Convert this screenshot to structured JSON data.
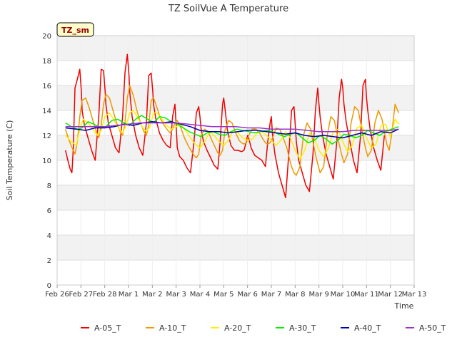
{
  "chart_data": {
    "type": "line",
    "title": "TZ SoilVue A Temperature",
    "xlabel": "Time",
    "ylabel": "Soil Temperature (C)",
    "ylim": [
      0,
      20
    ],
    "yticks": [
      0,
      2,
      4,
      6,
      8,
      10,
      12,
      14,
      16,
      18,
      20
    ],
    "xlim": [
      0,
      15
    ],
    "xticks": [
      0,
      1,
      2,
      3,
      4,
      5,
      6,
      7,
      8,
      9,
      10,
      11,
      12,
      13,
      14,
      15
    ],
    "xtick_labels": [
      "Feb 26",
      "Feb 27",
      "Feb 28",
      "Mar 1",
      "Mar 2",
      "Mar 3",
      "Mar 4",
      "Mar 5",
      "Mar 6",
      "Mar 7",
      "Mar 8",
      "Mar 9",
      "Mar 10",
      "Mar 11",
      "Mar 12",
      "Mar 13"
    ],
    "grid": true,
    "badge": "TZ_sm",
    "legend_position": "bottom",
    "series": [
      {
        "name": "A-05_T",
        "color": "#ee0000",
        "x": [
          0.35,
          0.45,
          0.55,
          0.62,
          0.68,
          0.75,
          0.85,
          0.95,
          1.02,
          1.05,
          1.15,
          1.3,
          1.45,
          1.6,
          1.75,
          1.85,
          1.95,
          2.02,
          2.05,
          2.15,
          2.3,
          2.45,
          2.6,
          2.75,
          2.85,
          2.95,
          3.02,
          3.05,
          3.15,
          3.3,
          3.45,
          3.6,
          3.75,
          3.85,
          3.95,
          4.02,
          4.05,
          4.15,
          4.3,
          4.45,
          4.6,
          4.75,
          4.85,
          4.95,
          5.0,
          5.05,
          5.15,
          5.3,
          5.45,
          5.6,
          5.75,
          5.85,
          5.95,
          6.0,
          6.05,
          6.15,
          6.3,
          6.45,
          6.6,
          6.75,
          6.85,
          6.95,
          7.0,
          7.05,
          7.15,
          7.3,
          7.45,
          7.6,
          7.75,
          7.85,
          7.95,
          8.0,
          8.05,
          8.15,
          8.3,
          8.45,
          8.6,
          8.75,
          8.85,
          8.95,
          9.0,
          9.05,
          9.15,
          9.3,
          9.45,
          9.6,
          9.75,
          9.85,
          9.95,
          10.0,
          10.05,
          10.15,
          10.3,
          10.45,
          10.6,
          10.75,
          10.85,
          10.95,
          11.0,
          11.05,
          11.15,
          11.3,
          11.45,
          11.6,
          11.75,
          11.85,
          11.95,
          12.0,
          12.05,
          12.15,
          12.3,
          12.45,
          12.6,
          12.75,
          12.85,
          12.95,
          13.0,
          13.05,
          13.15,
          13.3,
          13.45,
          13.6,
          13.75
        ],
        "values": [
          10.8,
          10.0,
          9.3,
          9.0,
          11.0,
          15.8,
          16.5,
          17.3,
          15.5,
          14.0,
          12.8,
          11.8,
          10.8,
          10.0,
          13.5,
          17.3,
          17.2,
          15.5,
          14.5,
          13.0,
          12.0,
          11.0,
          10.6,
          13.5,
          17.0,
          18.5,
          16.8,
          15.5,
          13.5,
          12.0,
          11.0,
          10.4,
          13.0,
          16.8,
          17.0,
          15.5,
          14.5,
          13.3,
          12.2,
          11.6,
          11.2,
          11.0,
          13.5,
          14.5,
          12.8,
          11.0,
          10.3,
          10.0,
          9.4,
          9.0,
          11.5,
          13.8,
          14.3,
          13.5,
          12.5,
          11.5,
          10.8,
          10.2,
          9.6,
          9.3,
          11.5,
          14.5,
          15.0,
          14.2,
          12.5,
          11.2,
          10.8,
          10.8,
          10.7,
          10.8,
          11.5,
          12.0,
          11.8,
          11.0,
          10.4,
          10.2,
          10.0,
          9.5,
          11.5,
          13.0,
          13.5,
          12.0,
          10.5,
          9.0,
          8.0,
          7.0,
          11.0,
          14.0,
          14.3,
          13.0,
          11.5,
          10.0,
          9.0,
          8.0,
          7.5,
          10.5,
          14.0,
          15.8,
          14.5,
          13.5,
          12.0,
          10.5,
          9.5,
          8.5,
          11.5,
          15.0,
          16.5,
          15.8,
          14.5,
          13.0,
          11.5,
          10.0,
          9.0,
          12.0,
          16.0,
          16.5,
          15.0,
          14.0,
          12.5,
          11.0,
          10.0,
          9.2,
          12.0
        ]
      },
      {
        "name": "A-10_T",
        "color": "#ee9900",
        "x": [
          0.35,
          0.5,
          0.65,
          0.75,
          0.85,
          0.95,
          1.05,
          1.2,
          1.35,
          1.5,
          1.65,
          1.75,
          1.85,
          1.95,
          2.05,
          2.2,
          2.35,
          2.5,
          2.65,
          2.75,
          2.85,
          2.95,
          3.05,
          3.2,
          3.35,
          3.5,
          3.65,
          3.75,
          3.85,
          3.95,
          4.05,
          4.2,
          4.35,
          4.5,
          4.65,
          4.75,
          4.85,
          4.95,
          5.05,
          5.2,
          5.35,
          5.5,
          5.65,
          5.75,
          5.85,
          5.95,
          6.05,
          6.2,
          6.35,
          6.5,
          6.65,
          6.75,
          6.85,
          6.95,
          7.05,
          7.2,
          7.35,
          7.5,
          7.65,
          7.75,
          7.85,
          7.95,
          8.05,
          8.2,
          8.35,
          8.5,
          8.65,
          8.75,
          8.85,
          8.95,
          9.05,
          9.2,
          9.35,
          9.5,
          9.65,
          9.75,
          9.85,
          9.95,
          10.05,
          10.2,
          10.35,
          10.5,
          10.65,
          10.75,
          10.85,
          10.95,
          11.05,
          11.2,
          11.35,
          11.5,
          11.65,
          11.75,
          11.85,
          11.95,
          12.05,
          12.2,
          12.35,
          12.5,
          12.65,
          12.75,
          12.85,
          12.95,
          13.05,
          13.2,
          13.35,
          13.5,
          13.65,
          13.75,
          13.85,
          13.95,
          14.05,
          14.2,
          14.35
        ],
        "values": [
          12.5,
          11.6,
          10.9,
          10.5,
          11.5,
          13.5,
          14.8,
          15.0,
          14.2,
          13.2,
          12.3,
          11.8,
          12.8,
          14.5,
          15.3,
          15.0,
          14.0,
          13.0,
          12.3,
          12.0,
          13.0,
          15.0,
          16.0,
          15.2,
          14.0,
          13.0,
          12.3,
          12.0,
          12.8,
          14.8,
          15.0,
          14.2,
          13.3,
          12.8,
          12.4,
          12.2,
          12.5,
          13.0,
          13.2,
          12.6,
          11.8,
          11.2,
          10.7,
          10.4,
          10.2,
          10.5,
          12.0,
          12.5,
          12.3,
          11.6,
          11.0,
          10.6,
          10.4,
          10.8,
          12.4,
          13.2,
          13.0,
          12.2,
          11.6,
          11.4,
          11.3,
          11.4,
          12.0,
          12.5,
          12.5,
          12.2,
          11.7,
          11.4,
          11.3,
          11.4,
          11.8,
          12.6,
          12.5,
          11.8,
          11.0,
          10.2,
          9.5,
          9.0,
          8.8,
          9.5,
          12.0,
          13.0,
          12.5,
          11.5,
          10.5,
          9.7,
          9.0,
          9.5,
          12.0,
          13.5,
          13.2,
          12.2,
          11.3,
          10.5,
          9.8,
          10.5,
          13.0,
          14.3,
          14.0,
          13.0,
          12.0,
          11.0,
          10.3,
          10.8,
          13.0,
          14.0,
          13.3,
          12.3,
          11.3,
          10.8,
          12.0,
          14.5,
          13.8
        ]
      },
      {
        "name": "A-20_T",
        "color": "#ffee00",
        "x": [
          0.35,
          0.6,
          0.8,
          0.95,
          1.1,
          1.3,
          1.5,
          1.7,
          1.85,
          2.0,
          2.2,
          2.4,
          2.6,
          2.75,
          2.9,
          3.05,
          3.2,
          3.4,
          3.6,
          3.75,
          3.9,
          4.05,
          4.2,
          4.4,
          4.6,
          4.8,
          5.0,
          5.2,
          5.4,
          5.6,
          5.8,
          6.0,
          6.2,
          6.4,
          6.6,
          6.8,
          7.0,
          7.2,
          7.4,
          7.6,
          7.8,
          8.0,
          8.2,
          8.4,
          8.6,
          8.8,
          9.0,
          9.2,
          9.4,
          9.6,
          9.8,
          10.0,
          10.2,
          10.4,
          10.6,
          10.8,
          11.0,
          11.2,
          11.4,
          11.6,
          11.8,
          12.0,
          12.2,
          12.4,
          12.6,
          12.8,
          13.0,
          13.2,
          13.4,
          13.6,
          13.8,
          14.0,
          14.2,
          14.35
        ],
        "values": [
          12.0,
          11.5,
          11.2,
          12.5,
          13.3,
          13.0,
          12.5,
          12.0,
          12.4,
          13.5,
          13.8,
          13.2,
          12.5,
          12.2,
          12.8,
          13.8,
          14.0,
          13.4,
          12.6,
          12.3,
          12.7,
          13.8,
          13.8,
          13.3,
          12.8,
          12.5,
          12.7,
          12.9,
          12.4,
          11.8,
          11.3,
          11.0,
          11.5,
          12.3,
          12.0,
          11.5,
          11.2,
          11.6,
          12.4,
          12.2,
          11.8,
          11.6,
          11.7,
          12.2,
          12.3,
          12.0,
          11.6,
          11.2,
          11.6,
          12.3,
          11.8,
          10.8,
          10.1,
          10.8,
          12.2,
          11.8,
          10.8,
          10.3,
          11.0,
          12.3,
          12.5,
          11.5,
          10.7,
          11.2,
          12.6,
          12.8,
          11.8,
          11.0,
          11.3,
          12.8,
          12.9,
          11.9,
          13.3,
          12.9
        ]
      },
      {
        "name": "A-30_T",
        "color": "#00ee00",
        "x": [
          0.35,
          0.6,
          0.85,
          1.05,
          1.3,
          1.55,
          1.8,
          2.05,
          2.3,
          2.55,
          2.8,
          3.05,
          3.3,
          3.55,
          3.8,
          4.05,
          4.3,
          4.55,
          4.8,
          5.05,
          5.3,
          5.55,
          5.8,
          6.05,
          6.3,
          6.55,
          6.8,
          7.05,
          7.3,
          7.55,
          7.8,
          8.05,
          8.3,
          8.55,
          8.8,
          9.05,
          9.3,
          9.55,
          9.8,
          10.05,
          10.3,
          10.55,
          10.8,
          11.05,
          11.3,
          11.55,
          11.8,
          12.05,
          12.3,
          12.55,
          12.8,
          13.05,
          13.3,
          13.55,
          13.8,
          14.05,
          14.35
        ],
        "values": [
          13.0,
          12.7,
          12.5,
          12.6,
          13.1,
          12.9,
          12.6,
          12.7,
          13.2,
          13.3,
          13.0,
          12.8,
          13.3,
          13.6,
          13.3,
          13.0,
          13.5,
          13.4,
          13.1,
          12.9,
          12.6,
          12.3,
          12.1,
          11.9,
          12.2,
          12.3,
          12.1,
          12.0,
          12.3,
          12.5,
          12.4,
          12.3,
          12.2,
          12.3,
          12.4,
          12.3,
          12.1,
          11.9,
          12.1,
          12.2,
          11.8,
          11.4,
          11.6,
          12.0,
          11.7,
          11.3,
          11.6,
          12.1,
          12.0,
          11.8,
          12.0,
          12.4,
          12.2,
          12.0,
          12.3,
          12.5,
          12.7
        ]
      },
      {
        "name": "A-40_T",
        "color": "#0000aa",
        "x": [
          0.35,
          0.8,
          1.2,
          1.6,
          2.0,
          2.4,
          2.8,
          3.2,
          3.6,
          4.0,
          4.4,
          4.8,
          5.2,
          5.6,
          6.0,
          6.4,
          6.8,
          7.2,
          7.6,
          8.0,
          8.4,
          8.8,
          9.2,
          9.6,
          10.0,
          10.4,
          10.8,
          11.2,
          11.6,
          12.0,
          12.4,
          12.8,
          13.2,
          13.6,
          14.0,
          14.35
        ],
        "values": [
          12.6,
          12.5,
          12.4,
          12.6,
          12.6,
          12.7,
          12.9,
          12.8,
          13.0,
          13.1,
          13.0,
          13.1,
          12.9,
          12.7,
          12.4,
          12.3,
          12.3,
          12.2,
          12.3,
          12.4,
          12.4,
          12.3,
          12.2,
          12.1,
          12.2,
          12.0,
          11.9,
          12.0,
          11.9,
          11.8,
          12.0,
          12.2,
          12.0,
          12.3,
          12.2,
          12.5
        ]
      },
      {
        "name": "A-50_T",
        "color": "#9933cc",
        "x": [
          0.35,
          1.0,
          1.5,
          2.0,
          2.5,
          3.0,
          3.5,
          4.0,
          4.5,
          5.0,
          5.5,
          6.0,
          6.5,
          7.0,
          7.5,
          8.0,
          8.5,
          9.0,
          9.5,
          10.0,
          10.5,
          11.0,
          11.5,
          12.0,
          12.5,
          13.0,
          13.5,
          14.0,
          14.35
        ],
        "values": [
          12.7,
          12.7,
          12.7,
          12.7,
          12.8,
          12.9,
          13.0,
          13.0,
          13.0,
          13.0,
          12.9,
          12.8,
          12.7,
          12.7,
          12.7,
          12.6,
          12.6,
          12.5,
          12.5,
          12.5,
          12.4,
          12.3,
          12.3,
          12.3,
          12.4,
          12.4,
          12.4,
          12.4,
          12.5
        ]
      }
    ]
  }
}
